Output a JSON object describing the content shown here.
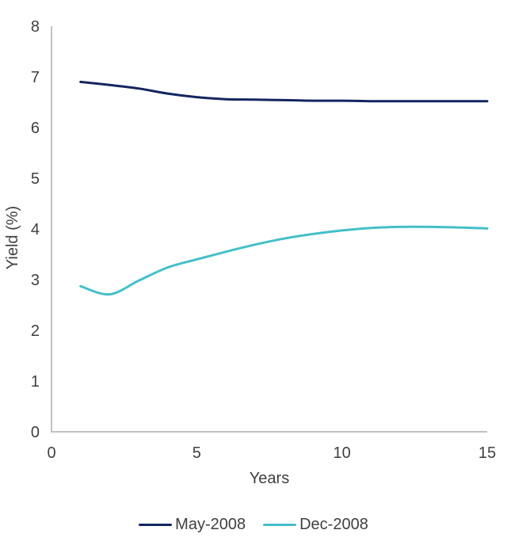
{
  "chart_data": {
    "type": "line",
    "title": "",
    "xlabel": "Years",
    "ylabel": "Yield (%)",
    "xlim": [
      0,
      15
    ],
    "ylim": [
      0,
      8
    ],
    "x_ticks": [
      "0",
      "5",
      "10",
      "15"
    ],
    "x_tick_values": [
      0,
      5,
      10,
      15
    ],
    "y_ticks": [
      "0",
      "1",
      "2",
      "3",
      "4",
      "5",
      "6",
      "7",
      "8"
    ],
    "y_tick_values": [
      0,
      1,
      2,
      3,
      4,
      5,
      6,
      7,
      8
    ],
    "grid": false,
    "legend_position": "bottom-center",
    "x": [
      1,
      2,
      3,
      4,
      5,
      6,
      7,
      8,
      9,
      10,
      11,
      12,
      13,
      14,
      15
    ],
    "series": [
      {
        "name": "May-2008",
        "color": "#13265F",
        "values": [
          6.9,
          6.84,
          6.77,
          6.67,
          6.6,
          6.56,
          6.55,
          6.54,
          6.53,
          6.53,
          6.52,
          6.52,
          6.52,
          6.52,
          6.52
        ]
      },
      {
        "name": "Dec-2008",
        "color": "#43C0CA",
        "values": [
          2.87,
          2.71,
          2.98,
          3.24,
          3.4,
          3.55,
          3.69,
          3.81,
          3.9,
          3.97,
          4.02,
          4.04,
          4.04,
          4.03,
          4.01
        ]
      }
    ]
  },
  "colors": {
    "axis": "#C2C2C2",
    "text": "#404040",
    "background": "#FFFFFF"
  }
}
